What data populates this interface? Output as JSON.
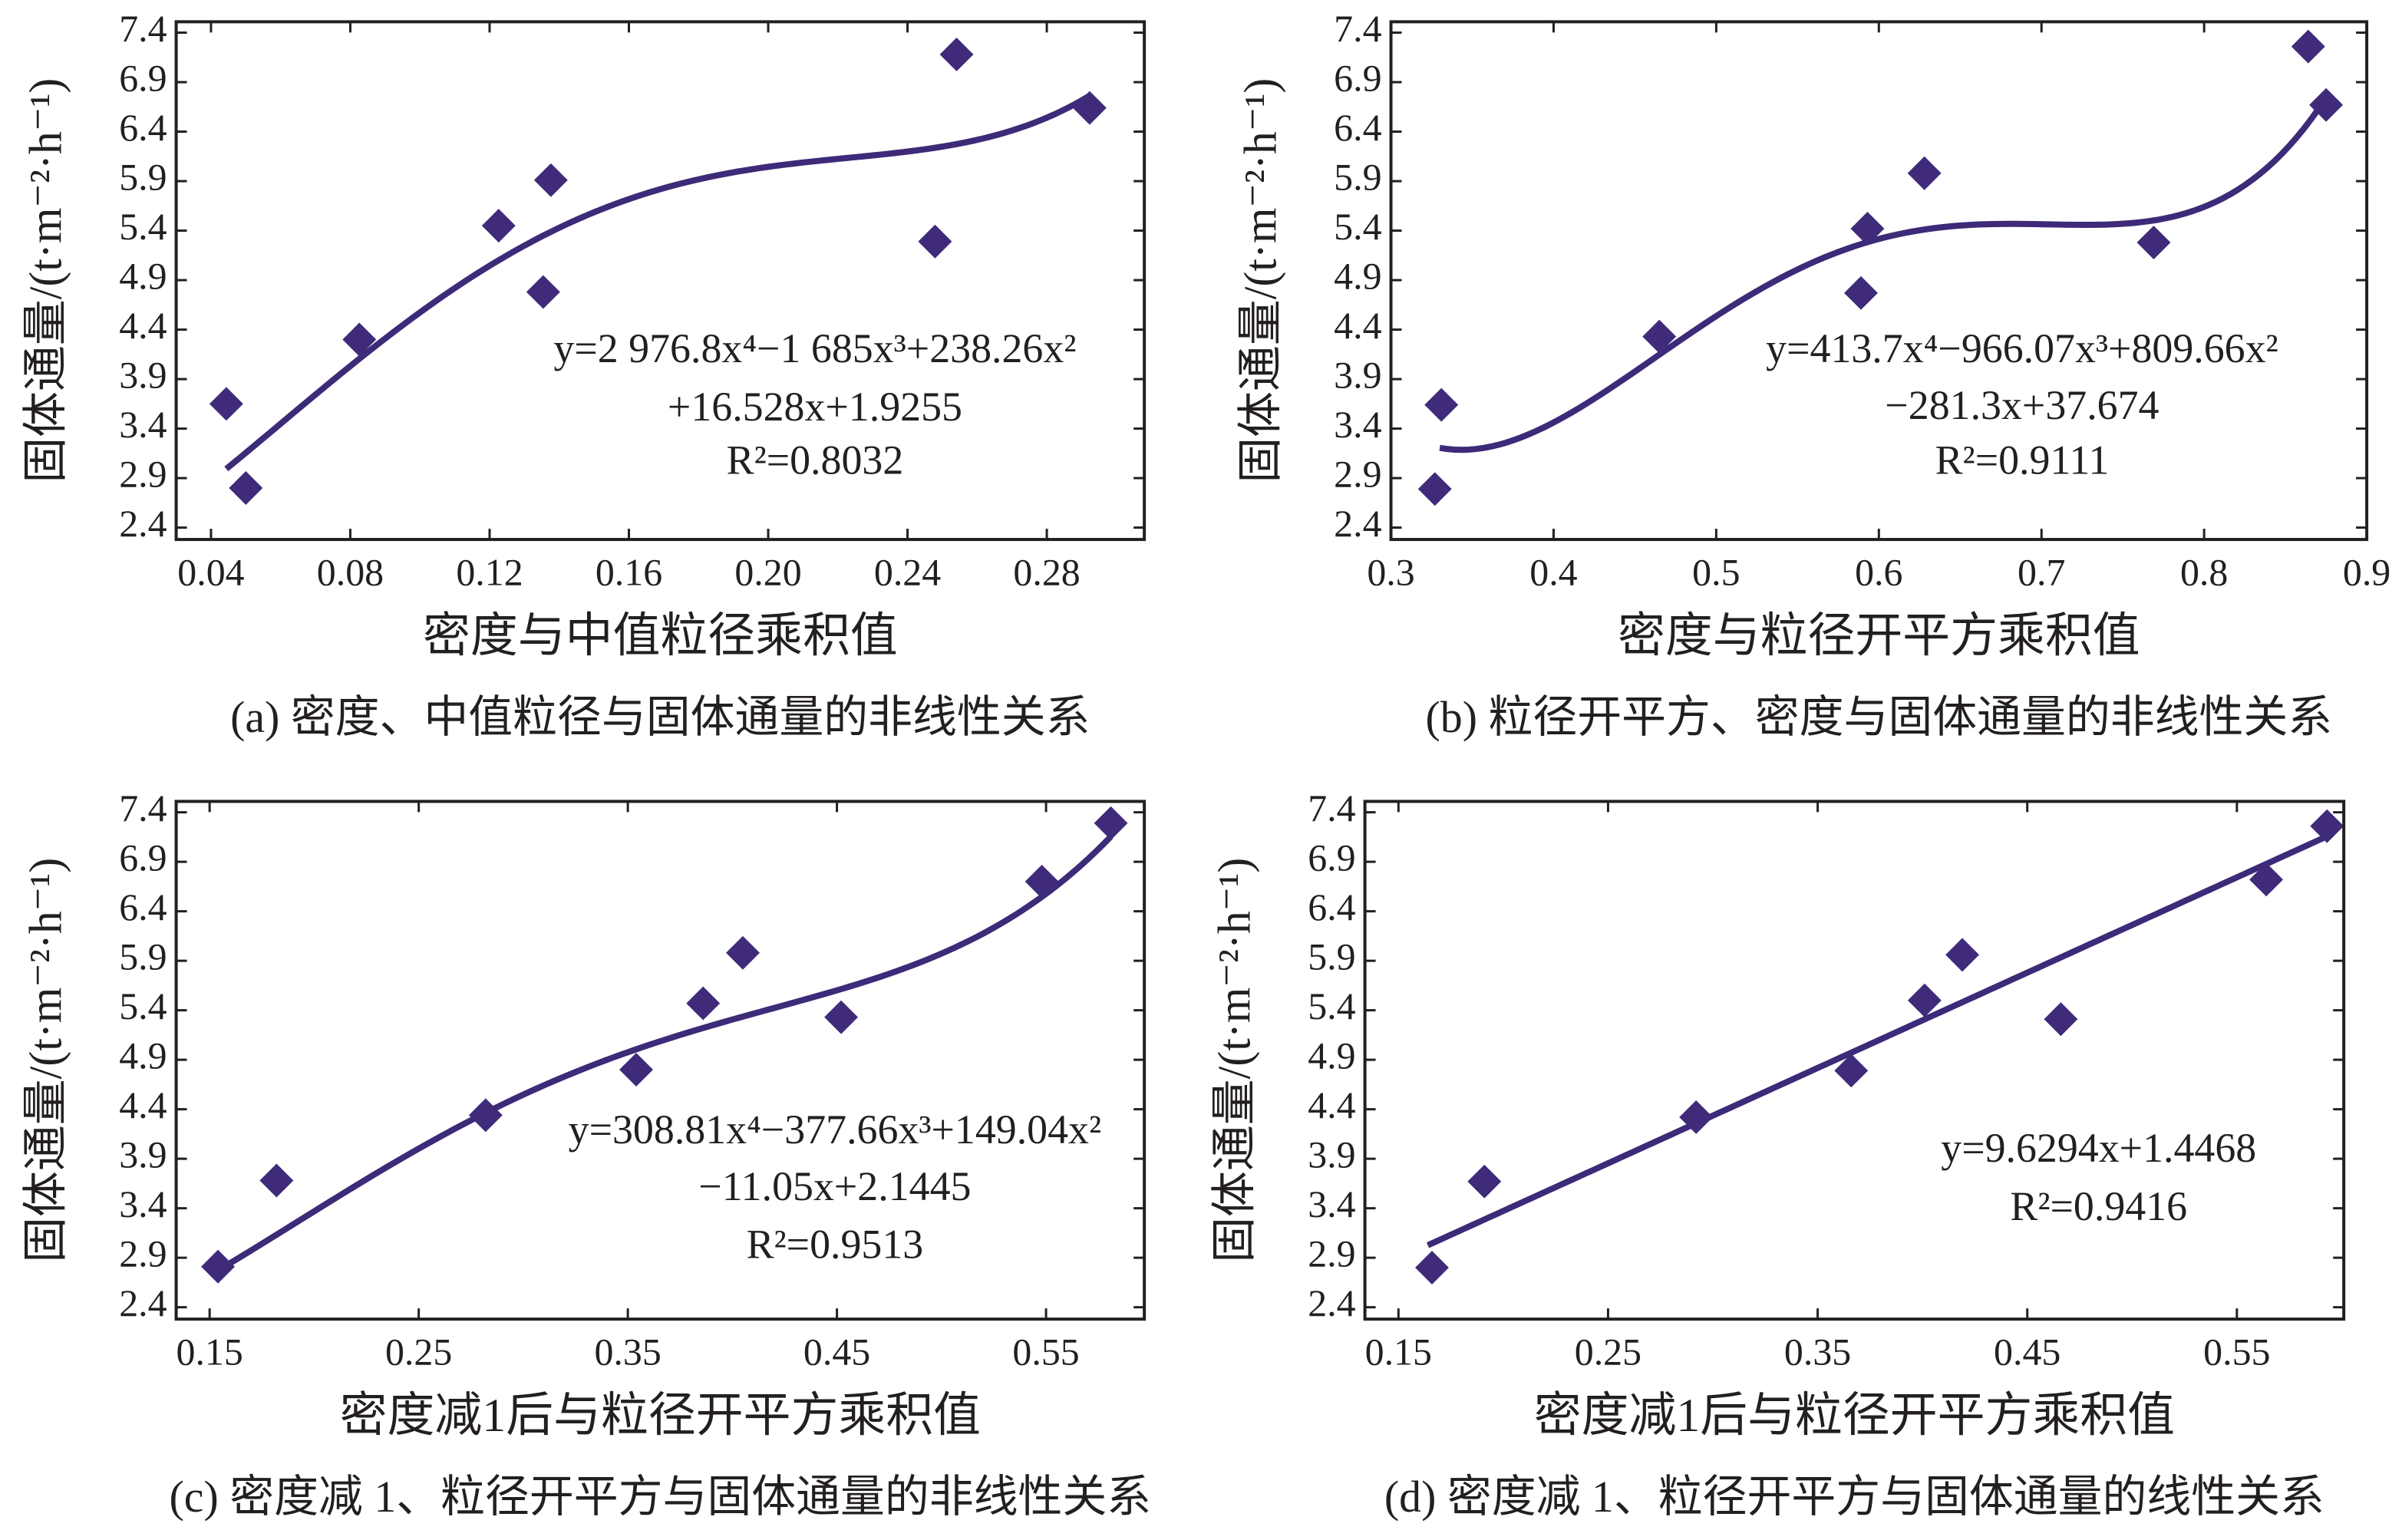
{
  "chart_data": [
    {
      "type": "scatter",
      "caption": "(a) 密度、中值粒径与固体通量的非线性关系",
      "x_label": "密度与中值粒径乘积值",
      "y_label": "固体通量/(t·m⁻²·h⁻¹)",
      "x": [
        0.0444,
        0.05,
        0.0826,
        0.1226,
        0.1354,
        0.1376,
        0.2479,
        0.2541,
        0.2923
      ],
      "values": [
        3.65,
        2.8,
        4.3,
        5.45,
        4.78,
        5.91,
        5.29,
        7.18,
        6.64
      ],
      "color": "#3f2b7a",
      "trendline": {
        "coefficients": [
          2976.8,
          -1685,
          238.26,
          16.528,
          1.9255
        ],
        "x_range": [
          0.0444,
          0.2923
        ],
        "color": "#3d2a78"
      },
      "annotations": [
        "y=2 976.8x⁴−1 685x³+238.26x²",
        "+16.528x+1.9255",
        "R²=0.8032"
      ],
      "xlim": [
        0.03,
        0.308
      ],
      "xticks": [
        0.04,
        0.08,
        0.12,
        0.16,
        {
          "value": 0.2,
          "label": "0.20"
        },
        0.24,
        0.28
      ],
      "ylim": [
        2.28,
        7.51
      ],
      "yticks": [
        2.4,
        2.9,
        3.4,
        3.9,
        4.4,
        4.9,
        5.4,
        5.9,
        6.4,
        6.9,
        7.4
      ]
    },
    {
      "type": "scatter",
      "caption": "(b) 粒径开平方、密度与固体通量的非线性关系",
      "x_label": "密度与粒径开平方乘积值",
      "y_label": "固体通量/(t·m⁻²·h⁻¹)",
      "x": [
        0.331,
        0.327,
        0.465,
        0.593,
        0.589,
        0.628,
        0.769,
        0.864,
        0.875
      ],
      "values": [
        3.64,
        2.79,
        4.33,
        5.42,
        4.77,
        5.98,
        5.28,
        7.26,
        6.67
      ],
      "color": "#3f2b7a",
      "trendline": {
        "coefficients": [
          413.7,
          -966.07,
          809.66,
          -281.3,
          37.674
        ],
        "x_range": [
          0.33,
          0.875
        ],
        "color": "#3d2a78"
      },
      "annotations": [
        "y=413.7x⁴−966.07x³+809.66x²",
        "−281.3x+37.674",
        "R²=0.9111"
      ],
      "xlim": [
        0.3,
        0.9
      ],
      "xticks": [
        0.3,
        0.4,
        0.5,
        0.6,
        0.7,
        0.8,
        0.9
      ],
      "ylim": [
        2.28,
        7.51
      ],
      "yticks": [
        2.4,
        2.9,
        3.4,
        3.9,
        4.4,
        4.9,
        5.4,
        5.9,
        6.4,
        6.9,
        7.4
      ]
    },
    {
      "type": "scatter",
      "caption": "(c) 密度减 1、粒径开平方与固体通量的非线性关系",
      "x_label": "密度减1后与粒径开平方乘积值",
      "y_label": "固体通量/(t·m⁻²·h⁻¹)",
      "x": [
        0.154,
        0.182,
        0.282,
        0.354,
        0.386,
        0.405,
        0.452,
        0.548,
        0.581
      ],
      "values": [
        2.81,
        3.68,
        4.34,
        4.8,
        5.47,
        5.98,
        5.33,
        6.7,
        7.29
      ],
      "color": "#3f2b7a",
      "trendline": {
        "coefficients": [
          308.81,
          -377.66,
          149.04,
          -11.05,
          2.1445
        ],
        "x_range": [
          0.154,
          0.581
        ],
        "color": "#3d2a78"
      },
      "annotations": [
        "y=308.81x⁴−377.66x³+149.04x²",
        "−11.05x+2.1445",
        "R²=0.9513"
      ],
      "xlim": [
        0.134,
        0.597
      ],
      "xticks": [
        0.15,
        0.25,
        0.35,
        0.45,
        0.55
      ],
      "ylim": [
        2.28,
        7.51
      ],
      "yticks": [
        2.4,
        2.9,
        3.4,
        3.9,
        4.4,
        4.9,
        5.4,
        5.9,
        6.4,
        6.9,
        7.4
      ]
    },
    {
      "type": "scatter",
      "caption": "(d) 密度减 1、粒径开平方与固体通量的线性关系",
      "x_label": "密度减1后与粒径开平方乘积值",
      "y_label": "固体通量/(t·m⁻²·h⁻¹)",
      "x": [
        0.166,
        0.191,
        0.292,
        0.366,
        0.401,
        0.419,
        0.466,
        0.564,
        0.593
      ],
      "values": [
        2.8,
        3.67,
        4.32,
        4.79,
        5.5,
        5.96,
        5.31,
        6.72,
        7.26
      ],
      "color": "#3f2b7a",
      "trendline": {
        "coefficients": [
          9.6294,
          1.4468
        ],
        "x_range": [
          0.164,
          0.594
        ],
        "color": "#3d2a78"
      },
      "annotations": [
        "y=9.6294x+1.4468",
        "R²=0.9416"
      ],
      "xlim": [
        0.134,
        0.601
      ],
      "xticks": [
        0.15,
        0.25,
        0.35,
        0.45,
        0.55
      ],
      "ylim": [
        2.28,
        7.51
      ],
      "yticks": [
        2.4,
        2.9,
        3.4,
        3.9,
        4.4,
        4.9,
        5.4,
        5.9,
        6.4,
        6.9,
        7.4
      ]
    }
  ]
}
